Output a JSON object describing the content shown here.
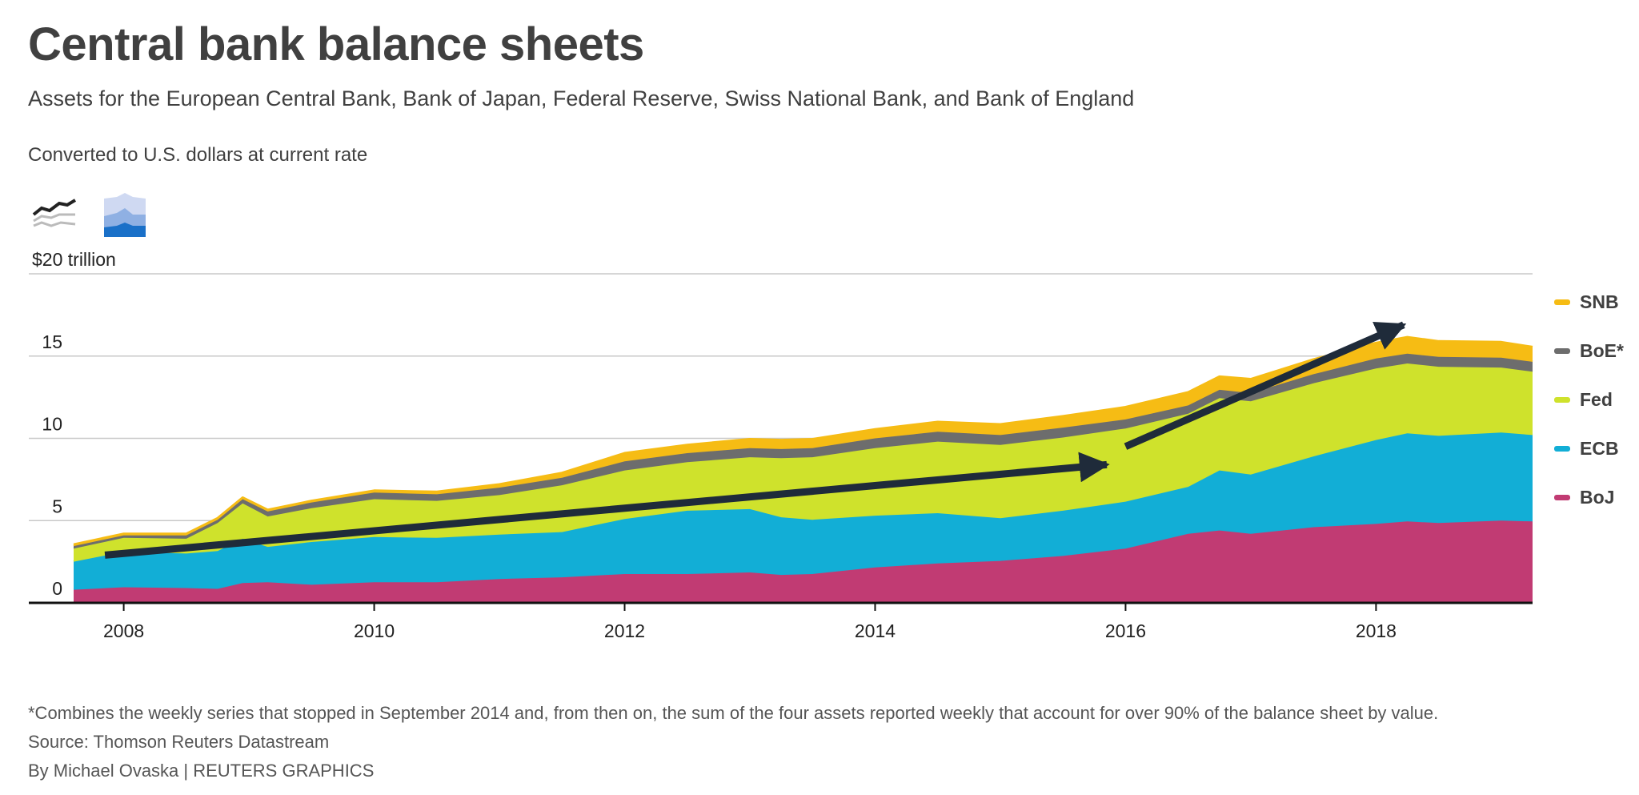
{
  "header": {
    "title": "Central bank balance sheets",
    "subtitle": "Assets for the European Central Bank, Bank of Japan, Federal Reserve, Swiss National Bank, and Bank of England",
    "note": "Converted to U.S. dollars at current rate"
  },
  "toggles": [
    {
      "icon": "line-chart-icon",
      "state": "inactive"
    },
    {
      "icon": "stacked-area-chart-icon",
      "state": "active"
    }
  ],
  "footer": {
    "footnote": "*Combines the weekly series that stopped in September 2014 and, from then on, the sum of the four assets reported weekly that account for over 90% of the balance sheet by value.",
    "source": "Source: Thomson Reuters Datastream",
    "credit": "By Michael Ovaska | REUTERS GRAPHICS"
  },
  "chart_data": {
    "type": "area",
    "stacked": true,
    "yunit_label": "$20 trillion",
    "ylim": [
      0,
      20
    ],
    "yticks": [
      0,
      5,
      10,
      15,
      20
    ],
    "ytick_labels": [
      "0",
      "5",
      "10",
      "15",
      "$20 trillion"
    ],
    "xlim": [
      2007.6,
      2019.25
    ],
    "xticks": [
      2008,
      2010,
      2012,
      2014,
      2016,
      2018
    ],
    "xtick_labels": [
      "2008",
      "2010",
      "2012",
      "2014",
      "2016",
      "2018"
    ],
    "grid": true,
    "legend_position": "right",
    "x": [
      2007.6,
      2008.0,
      2008.5,
      2008.75,
      2008.95,
      2009.15,
      2009.5,
      2010.0,
      2010.5,
      2011.0,
      2011.5,
      2012.0,
      2012.5,
      2013.0,
      2013.25,
      2013.5,
      2014.0,
      2014.5,
      2015.0,
      2015.5,
      2016.0,
      2016.5,
      2016.75,
      2017.0,
      2017.5,
      2018.0,
      2018.25,
      2018.5,
      2019.0,
      2019.25
    ],
    "series": [
      {
        "name": "BoJ",
        "color": "#c13b73",
        "values": [
          0.8,
          0.95,
          0.9,
          0.85,
          1.2,
          1.25,
          1.1,
          1.25,
          1.25,
          1.45,
          1.55,
          1.75,
          1.75,
          1.85,
          1.7,
          1.75,
          2.15,
          2.4,
          2.55,
          2.85,
          3.3,
          4.2,
          4.4,
          4.2,
          4.6,
          4.8,
          4.95,
          4.85,
          5.0,
          4.95
        ]
      },
      {
        "name": "ECB",
        "color": "#12aed6",
        "values": [
          1.7,
          2.15,
          2.1,
          2.3,
          2.7,
          2.15,
          2.6,
          2.75,
          2.7,
          2.7,
          2.75,
          3.35,
          3.85,
          3.85,
          3.5,
          3.3,
          3.15,
          3.05,
          2.6,
          2.75,
          2.85,
          2.85,
          3.65,
          3.6,
          4.3,
          5.1,
          5.35,
          5.3,
          5.35,
          5.25
        ]
      },
      {
        "name": "Fed",
        "color": "#cfe22c",
        "values": [
          0.8,
          0.85,
          0.9,
          1.7,
          2.15,
          1.85,
          2.05,
          2.3,
          2.25,
          2.4,
          2.85,
          2.95,
          2.95,
          3.15,
          3.6,
          3.8,
          4.1,
          4.35,
          4.45,
          4.45,
          4.45,
          4.45,
          4.4,
          4.45,
          4.45,
          4.35,
          4.25,
          4.2,
          3.95,
          3.85
        ]
      },
      {
        "name": "BoE*",
        "color": "#6d6d6d",
        "values": [
          0.15,
          0.15,
          0.2,
          0.2,
          0.25,
          0.3,
          0.35,
          0.4,
          0.4,
          0.45,
          0.45,
          0.55,
          0.55,
          0.55,
          0.55,
          0.55,
          0.6,
          0.6,
          0.6,
          0.6,
          0.55,
          0.5,
          0.5,
          0.5,
          0.55,
          0.6,
          0.6,
          0.6,
          0.6,
          0.6
        ]
      },
      {
        "name": "SNB",
        "color": "#f6bc14",
        "values": [
          0.1,
          0.1,
          0.1,
          0.1,
          0.1,
          0.1,
          0.1,
          0.12,
          0.15,
          0.2,
          0.3,
          0.5,
          0.5,
          0.55,
          0.55,
          0.55,
          0.55,
          0.6,
          0.65,
          0.7,
          0.75,
          0.8,
          0.8,
          0.85,
          0.9,
          0.95,
          1.0,
          0.95,
          0.95,
          0.9
        ]
      }
    ],
    "annotations": [
      {
        "type": "arrow",
        "from": [
          2007.85,
          2.9
        ],
        "to": [
          2015.85,
          8.4
        ]
      },
      {
        "type": "arrow",
        "from": [
          2016.0,
          9.5
        ],
        "to": [
          2018.22,
          16.9
        ]
      }
    ]
  }
}
